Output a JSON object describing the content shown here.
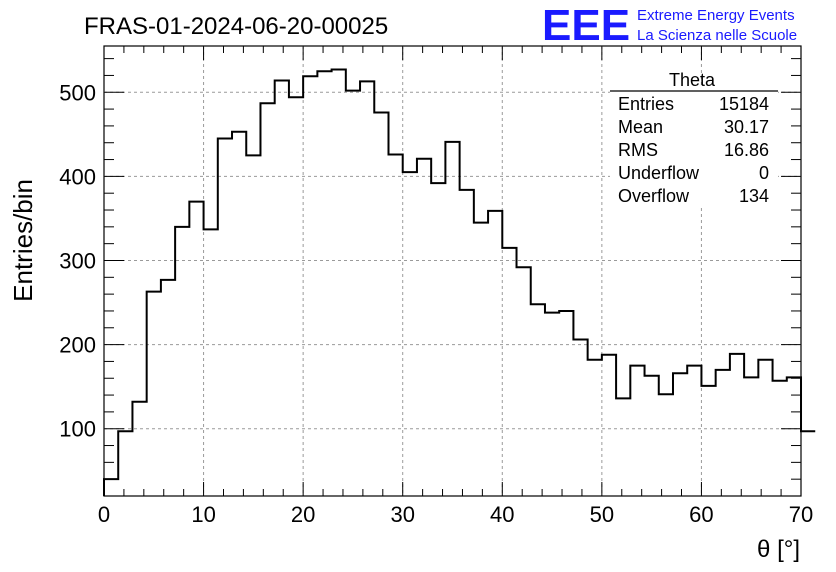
{
  "chart_data": {
    "type": "bar",
    "title": "FRAS-01-2024-06-20-00025",
    "xlabel": "θ [°]",
    "ylabel": "Entries/bin",
    "xlim": [
      0,
      70
    ],
    "ylim": [
      20,
      555
    ],
    "x_ticks": [
      "0",
      "10",
      "20",
      "30",
      "40",
      "50",
      "60",
      "70"
    ],
    "y_ticks": [
      "100",
      "200",
      "300",
      "400",
      "500"
    ],
    "grid": true,
    "bin_width": 1.4286,
    "values": [
      40,
      97,
      132,
      263,
      277,
      340,
      370,
      337,
      445,
      453,
      425,
      487,
      514,
      494,
      519,
      525,
      527,
      502,
      513,
      476,
      426,
      405,
      421,
      392,
      441,
      384,
      345,
      359,
      315,
      292,
      248,
      238,
      240,
      206,
      182,
      188,
      136,
      175,
      163,
      141,
      166,
      175,
      151,
      170,
      189,
      161,
      182,
      157,
      161,
      97
    ],
    "stats_box": {
      "title": "Theta",
      "rows": [
        {
          "label": "Entries",
          "value": "15184"
        },
        {
          "label": "Mean",
          "value": "30.17"
        },
        {
          "label": "RMS",
          "value": "16.86"
        },
        {
          "label": "Underflow",
          "value": "0"
        },
        {
          "label": "Overflow",
          "value": "134"
        }
      ]
    }
  },
  "logo": {
    "mark": "EEE",
    "line1": "Extreme Energy Events",
    "line2": "La Scienza nelle Scuole",
    "color": "#1a1aff"
  }
}
